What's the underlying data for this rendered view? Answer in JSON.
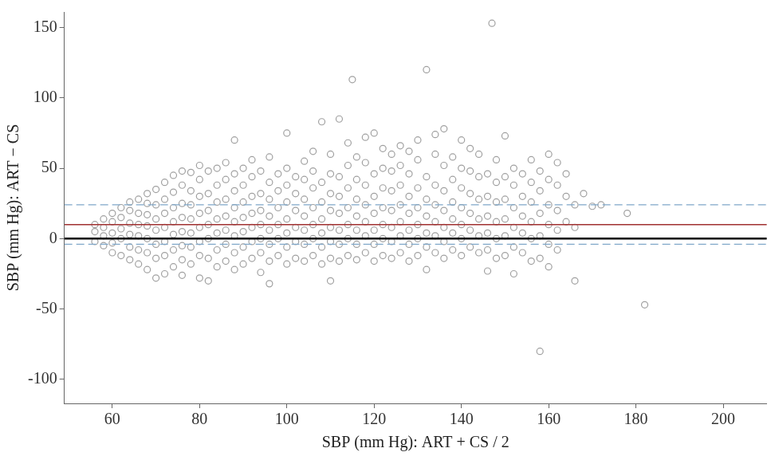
{
  "chart_data": {
    "type": "scatter",
    "x_label": "SBP (mm Hg): ART + CS / 2",
    "y_label": "SBP (mm Hg): ART − CS",
    "xlim": [
      49,
      210
    ],
    "xticks": [
      60,
      80,
      100,
      120,
      140,
      160,
      180,
      200
    ],
    "ylim": [
      -117,
      161
    ],
    "yticks": [
      -100,
      -50,
      0,
      50,
      100,
      150
    ],
    "grid": false,
    "series": [
      {
        "marker": "open_circle",
        "color": "#a0a0a0",
        "x": [
          56,
          56,
          56,
          58,
          58,
          58,
          58,
          60,
          60,
          60,
          60,
          60,
          62,
          62,
          62,
          62,
          62,
          64,
          64,
          64,
          64,
          64,
          64,
          66,
          66,
          66,
          66,
          66,
          66,
          68,
          68,
          68,
          68,
          68,
          68,
          68,
          70,
          70,
          70,
          70,
          70,
          70,
          70,
          72,
          72,
          72,
          72,
          72,
          72,
          72,
          74,
          74,
          74,
          74,
          74,
          74,
          74,
          76,
          76,
          76,
          76,
          76,
          76,
          76,
          76,
          78,
          78,
          78,
          78,
          78,
          78,
          78,
          80,
          80,
          80,
          80,
          80,
          80,
          80,
          80,
          82,
          82,
          82,
          82,
          82,
          82,
          82,
          84,
          84,
          84,
          84,
          84,
          84,
          84,
          86,
          86,
          86,
          86,
          86,
          86,
          86,
          88,
          88,
          88,
          88,
          88,
          88,
          88,
          88,
          90,
          90,
          90,
          90,
          90,
          90,
          90,
          92,
          92,
          92,
          92,
          92,
          92,
          92,
          94,
          94,
          94,
          94,
          94,
          94,
          94,
          96,
          96,
          96,
          96,
          96,
          96,
          96,
          96,
          98,
          98,
          98,
          98,
          98,
          98,
          100,
          100,
          100,
          100,
          100,
          100,
          100,
          100,
          102,
          102,
          102,
          102,
          102,
          102,
          104,
          104,
          104,
          104,
          104,
          104,
          104,
          106,
          106,
          106,
          106,
          106,
          106,
          106,
          108,
          108,
          108,
          108,
          108,
          108,
          108,
          110,
          110,
          110,
          110,
          110,
          110,
          110,
          110,
          112,
          112,
          112,
          112,
          112,
          112,
          112,
          114,
          114,
          114,
          114,
          114,
          114,
          114,
          115,
          116,
          116,
          116,
          116,
          116,
          116,
          116,
          118,
          118,
          118,
          118,
          118,
          118,
          118,
          120,
          120,
          120,
          120,
          120,
          120,
          120,
          122,
          122,
          122,
          122,
          122,
          122,
          122,
          124,
          124,
          124,
          124,
          124,
          124,
          124,
          126,
          126,
          126,
          126,
          126,
          126,
          126,
          128,
          128,
          128,
          128,
          128,
          128,
          128,
          130,
          130,
          130,
          130,
          130,
          130,
          130,
          132,
          132,
          132,
          132,
          132,
          132,
          132,
          134,
          134,
          134,
          134,
          134,
          134,
          134,
          136,
          136,
          136,
          136,
          136,
          136,
          136,
          138,
          138,
          138,
          138,
          138,
          138,
          140,
          140,
          140,
          140,
          140,
          140,
          140,
          142,
          142,
          142,
          142,
          142,
          142,
          144,
          144,
          144,
          144,
          144,
          144,
          146,
          146,
          146,
          146,
          146,
          146,
          147,
          148,
          148,
          148,
          148,
          148,
          148,
          150,
          150,
          150,
          150,
          150,
          150,
          152,
          152,
          152,
          152,
          152,
          152,
          154,
          154,
          154,
          154,
          154,
          156,
          156,
          156,
          156,
          156,
          156,
          158,
          158,
          158,
          158,
          158,
          158,
          160,
          160,
          160,
          160,
          160,
          160,
          162,
          162,
          162,
          162,
          162,
          164,
          164,
          164,
          166,
          166,
          166,
          168,
          170,
          172,
          178,
          182
        ],
        "values": [
          -2,
          5,
          10,
          -5,
          2,
          8,
          14,
          -10,
          -3,
          4,
          12,
          18,
          -12,
          0,
          7,
          15,
          22,
          -15,
          -6,
          3,
          11,
          20,
          26,
          -18,
          -8,
          2,
          10,
          18,
          28,
          -22,
          -10,
          0,
          9,
          17,
          25,
          32,
          -28,
          -14,
          -4,
          6,
          14,
          24,
          35,
          -25,
          -12,
          -2,
          8,
          18,
          28,
          40,
          -20,
          -8,
          3,
          12,
          22,
          33,
          45,
          -26,
          -15,
          -5,
          5,
          15,
          25,
          38,
          48,
          -18,
          -6,
          4,
          14,
          24,
          34,
          47,
          -28,
          -12,
          -2,
          8,
          18,
          30,
          42,
          52,
          -30,
          -14,
          0,
          10,
          20,
          32,
          48,
          -20,
          -8,
          4,
          14,
          26,
          38,
          50,
          -16,
          -4,
          6,
          16,
          28,
          42,
          54,
          -22,
          -10,
          2,
          12,
          22,
          34,
          46,
          70,
          -18,
          -6,
          5,
          15,
          26,
          38,
          50,
          -14,
          -2,
          8,
          18,
          30,
          44,
          56,
          -24,
          -10,
          0,
          10,
          20,
          32,
          48,
          -32,
          -16,
          -4,
          6,
          16,
          28,
          40,
          58,
          -12,
          0,
          10,
          22,
          34,
          46,
          -18,
          -6,
          4,
          14,
          26,
          38,
          50,
          75,
          -14,
          -2,
          8,
          20,
          32,
          44,
          -16,
          -4,
          6,
          16,
          28,
          42,
          55,
          -12,
          0,
          10,
          22,
          36,
          48,
          62,
          -18,
          -6,
          4,
          14,
          26,
          40,
          83,
          -30,
          -14,
          -2,
          8,
          20,
          32,
          46,
          60,
          -16,
          -4,
          6,
          18,
          30,
          44,
          85,
          -12,
          0,
          10,
          22,
          36,
          52,
          68,
          113,
          -15,
          -4,
          6,
          16,
          28,
          42,
          58,
          -10,
          2,
          12,
          24,
          38,
          54,
          72,
          -16,
          -4,
          6,
          18,
          30,
          46,
          75,
          -12,
          0,
          10,
          22,
          36,
          50,
          64,
          -14,
          -2,
          8,
          20,
          34,
          48,
          60,
          -10,
          2,
          12,
          24,
          38,
          52,
          66,
          -16,
          -4,
          6,
          18,
          30,
          46,
          62,
          -12,
          0,
          10,
          22,
          36,
          56,
          70,
          -22,
          -6,
          4,
          16,
          28,
          44,
          120,
          -10,
          2,
          12,
          24,
          38,
          60,
          74,
          -14,
          -2,
          8,
          20,
          34,
          52,
          78,
          -8,
          4,
          14,
          26,
          42,
          58,
          -12,
          0,
          10,
          22,
          36,
          50,
          70,
          -6,
          6,
          18,
          32,
          48,
          64,
          -10,
          2,
          14,
          28,
          44,
          60,
          -23,
          -8,
          4,
          16,
          30,
          46,
          153,
          -14,
          0,
          12,
          26,
          40,
          56,
          -12,
          2,
          14,
          28,
          44,
          73,
          -25,
          -6,
          8,
          22,
          38,
          50,
          -10,
          4,
          16,
          30,
          46,
          -16,
          0,
          12,
          26,
          40,
          56,
          -80,
          -14,
          2,
          18,
          34,
          48,
          -20,
          -4,
          10,
          24,
          42,
          60,
          -8,
          6,
          20,
          38,
          54,
          12,
          30,
          46,
          -30,
          8,
          24,
          32,
          23,
          24,
          18,
          -47
        ]
      }
    ],
    "hlines": [
      {
        "value": 0,
        "color": "#000000",
        "line_style": "solid"
      },
      {
        "value": 10,
        "color": "#a03030",
        "line_style": "solid"
      },
      {
        "value": 24,
        "color": "#7fa7c9",
        "line_style": "dashed"
      },
      {
        "value": -4,
        "color": "#7fa7c9",
        "line_style": "dashed"
      }
    ]
  }
}
